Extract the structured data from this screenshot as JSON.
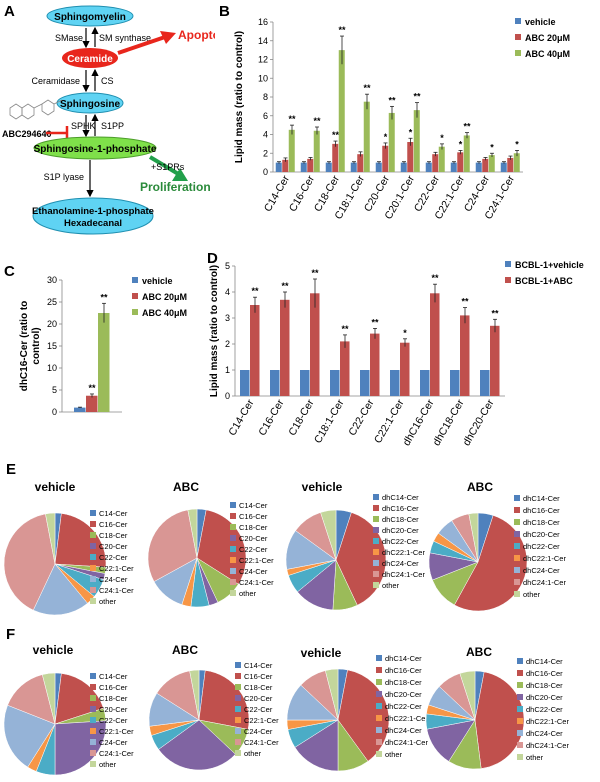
{
  "panels": {
    "A": "A",
    "B": "B",
    "C": "C",
    "D": "D",
    "E": "E",
    "F": "F"
  },
  "colors": {
    "vehicle": "#4f81bd",
    "abc20": "#c0504d",
    "abc40": "#9bbb59",
    "green_arrow": "#22a04b",
    "red_arrow": "#e8261c",
    "node": "#5fd3f3",
    "node_stroke": "#1f8fb0"
  },
  "pathway": {
    "sphingomyelin": "Sphingomyelin",
    "smase": "SMase",
    "sm_synthase": "SM synthase",
    "ceramide": "Ceramide",
    "apoptosis": "Apoptosis",
    "ceramidase": "Ceramidase",
    "cs": "CS",
    "sphingosine": "Sphingosine",
    "sphk": "SPHK",
    "s1pp": "S1PP",
    "inhibitor": "ABC294640",
    "s1p": "Sphingosine-1-phosphate",
    "s1prs": "+S1PRs",
    "s1p_lyase": "S1P lyase",
    "proliferation": "Proliferation",
    "eth_line1": "Ethanolamine-1-phosphate",
    "eth_line2": "Hexadecanal"
  },
  "chart_data": [
    {
      "id": "B",
      "type": "bar",
      "categories": [
        "C14-Cer",
        "C16-Cer",
        "C18-Cer",
        "C18:1-Cer",
        "C20-Cer",
        "C20:1-Cer",
        "C22-Cer",
        "C22:1-Cer",
        "C24-Cer",
        "C24:1-Cer"
      ],
      "series": [
        {
          "name": "vehicle",
          "values": [
            1,
            1,
            1,
            1,
            1,
            1,
            1,
            1,
            1,
            1
          ],
          "errors": [
            0.1,
            0.1,
            0.1,
            0.1,
            0.1,
            0.1,
            0.1,
            0.1,
            0.1,
            0.1
          ],
          "sig": [
            "",
            "",
            "",
            "",
            "",
            "",
            "",
            "",
            "",
            ""
          ]
        },
        {
          "name": "ABC 20μM",
          "values": [
            1.3,
            1.4,
            3.0,
            1.9,
            2.8,
            3.2,
            1.9,
            2.1,
            1.4,
            1.5
          ],
          "errors": [
            0.2,
            0.15,
            0.3,
            0.25,
            0.3,
            0.4,
            0.2,
            0.2,
            0.15,
            0.2
          ],
          "sig": [
            "",
            "",
            "**",
            "",
            "*",
            "*",
            "",
            "*",
            "",
            ""
          ]
        },
        {
          "name": "ABC 40μM",
          "values": [
            4.5,
            4.4,
            13.0,
            7.5,
            6.3,
            6.6,
            2.7,
            3.9,
            1.8,
            2.0
          ],
          "errors": [
            0.5,
            0.4,
            1.5,
            0.8,
            0.7,
            0.8,
            0.3,
            0.3,
            0.2,
            0.3
          ],
          "sig": [
            "**",
            "**",
            "**",
            "**",
            "**",
            "**",
            "*",
            "**",
            "*",
            "*"
          ]
        }
      ],
      "ylabel": "Lipid mass (ratio to control)",
      "ylim": [
        0,
        16
      ],
      "yticks": [
        "0",
        "2",
        "4",
        "6",
        "8",
        "10",
        "12",
        "14",
        "16"
      ],
      "legend": [
        "vehicle",
        "ABC 20μM",
        "ABC 40μM"
      ]
    },
    {
      "id": "C",
      "type": "bar",
      "categories": [
        ""
      ],
      "series": [
        {
          "name": "vehicle",
          "values": [
            1.0
          ],
          "errors": [
            0.1
          ],
          "sig": [
            ""
          ]
        },
        {
          "name": "ABC 20μM",
          "values": [
            3.7
          ],
          "errors": [
            0.4
          ],
          "sig": [
            "**"
          ]
        },
        {
          "name": "ABC 40μM",
          "values": [
            22.5
          ],
          "errors": [
            2.2
          ],
          "sig": [
            "**"
          ]
        }
      ],
      "ylabel": "dhC16-Cer (ratio to control)",
      "ylabel_line1": "dhC16-Cer (ratio to",
      "ylabel_line2": "control)",
      "ylim": [
        0,
        30
      ],
      "yticks": [
        "0",
        "5",
        "10",
        "15",
        "20",
        "25",
        "30"
      ],
      "legend": [
        "vehicle",
        "ABC 20μM",
        "ABC 40μM"
      ]
    },
    {
      "id": "D",
      "type": "bar",
      "categories": [
        "C14-Cer",
        "C16-Cer",
        "C18-Cer",
        "C18:1-Cer",
        "C22-Cer",
        "C22:1-Cer",
        "dhC16-Cer",
        "dhC18-Cer",
        "dhC20-Cer"
      ],
      "series": [
        {
          "name": "BCBL-1+vehicle",
          "values": [
            1,
            1,
            1,
            1,
            1,
            1,
            1,
            1,
            1
          ],
          "errors": [
            0,
            0,
            0,
            0,
            0,
            0,
            0,
            0,
            0
          ],
          "sig": [
            "",
            "",
            "",
            "",
            "",
            "",
            "",
            "",
            ""
          ]
        },
        {
          "name": "BCBL-1+ABC",
          "values": [
            3.5,
            3.7,
            3.95,
            2.1,
            2.4,
            2.05,
            3.95,
            3.1,
            2.7
          ],
          "errors": [
            0.3,
            0.3,
            0.55,
            0.25,
            0.2,
            0.15,
            0.35,
            0.3,
            0.25
          ],
          "sig": [
            "**",
            "**",
            "**",
            "**",
            "**",
            "*",
            "**",
            "**",
            "**"
          ]
        }
      ],
      "ylabel": "Lipid mass (ratio to control)",
      "ylim": [
        0,
        5
      ],
      "yticks": [
        "0",
        "1",
        "2",
        "3",
        "4",
        "5"
      ],
      "legend": [
        "BCBL-1+vehicle",
        "BCBL-1+ABC"
      ]
    },
    {
      "id": "E1",
      "type": "pie",
      "title": "vehicle",
      "labels": [
        "C14-Cer",
        "C16-Cer",
        "C18-Cer",
        "C20-Cer",
        "C22-Cer",
        "C22:1-Cer",
        "C24-Cer",
        "C24:1-Cer",
        "other"
      ],
      "values": [
        2,
        24,
        2,
        2,
        6,
        3,
        18,
        40,
        3
      ]
    },
    {
      "id": "E2",
      "type": "pie",
      "title": "ABC",
      "labels": [
        "C14-Cer",
        "C16-Cer",
        "C18-Cer",
        "C20-Cer",
        "C22-Cer",
        "C22:1-Cer",
        "C24-Cer",
        "C24:1-Cer",
        "other"
      ],
      "values": [
        3,
        31,
        9,
        3,
        6,
        3,
        12,
        30,
        3
      ]
    },
    {
      "id": "E3",
      "type": "pie",
      "title": "vehicle",
      "labels": [
        "dhC14-Cer",
        "dhC16-Cer",
        "dhC18-Cer",
        "dhC20-Cer",
        "dhC22-Cer",
        "dhC22:1-Cer",
        "dhC24-Cer",
        "dhC24:1-Cer",
        "other"
      ],
      "values": [
        5,
        38,
        8,
        13,
        6,
        2,
        13,
        10,
        5
      ]
    },
    {
      "id": "E4",
      "type": "pie",
      "title": "ABC",
      "labels": [
        "dhC14-Cer",
        "dhC16-Cer",
        "dhC18-Cer",
        "dhC20-Cer",
        "dhC22-Cer",
        "dhC22:1-Cer",
        "dhC24-Cer",
        "dhC24:1-Cer",
        "other"
      ],
      "values": [
        5,
        53,
        11,
        9,
        4,
        3,
        6,
        6,
        3
      ]
    },
    {
      "id": "F1",
      "type": "pie",
      "title": "vehicle",
      "labels": [
        "C14-Cer",
        "C16-Cer",
        "C18-Cer",
        "C20-Cer",
        "C22-Cer",
        "C22:1-Cer",
        "C24-Cer",
        "C24:1-Cer",
        "other"
      ],
      "values": [
        2,
        18,
        4,
        26,
        6,
        3,
        22,
        15,
        4
      ]
    },
    {
      "id": "F2",
      "type": "pie",
      "title": "ABC",
      "labels": [
        "C14-Cer",
        "C16-Cer",
        "C18-Cer",
        "C20-Cer",
        "C22-Cer",
        "C22:1-Cer",
        "C24-Cer",
        "C24:1-Cer",
        "other"
      ],
      "values": [
        2,
        26,
        9,
        28,
        5,
        3,
        11,
        13,
        3
      ]
    },
    {
      "id": "F3",
      "type": "pie",
      "title": "vehicle",
      "labels": [
        "dhC14-Cer",
        "dhC16-Cer",
        "dhC18-Cer",
        "dhC20-Cer",
        "dhC22-Cer",
        "dhC22:1-Cer",
        "dhC24-Cer",
        "dhC24:1-Cer",
        "other"
      ],
      "values": [
        3,
        37,
        10,
        16,
        6,
        3,
        12,
        9,
        4
      ]
    },
    {
      "id": "F4",
      "type": "pie",
      "title": "ABC",
      "labels": [
        "dhC14-Cer",
        "dhC16-Cer",
        "dhC18-Cer",
        "dhC20-Cer",
        "dhC22-Cer",
        "dhC22:1-Cer",
        "dhC24-Cer",
        "dhC24:1-Cer",
        "other"
      ],
      "values": [
        3,
        45,
        11,
        13,
        5,
        3,
        7,
        8,
        5
      ]
    }
  ],
  "pie_colors": [
    "#4f81bd",
    "#c0504d",
    "#9bbb59",
    "#8064a2",
    "#4bacc6",
    "#f79646",
    "#95b3d7",
    "#d99694",
    "#c3d69b"
  ]
}
